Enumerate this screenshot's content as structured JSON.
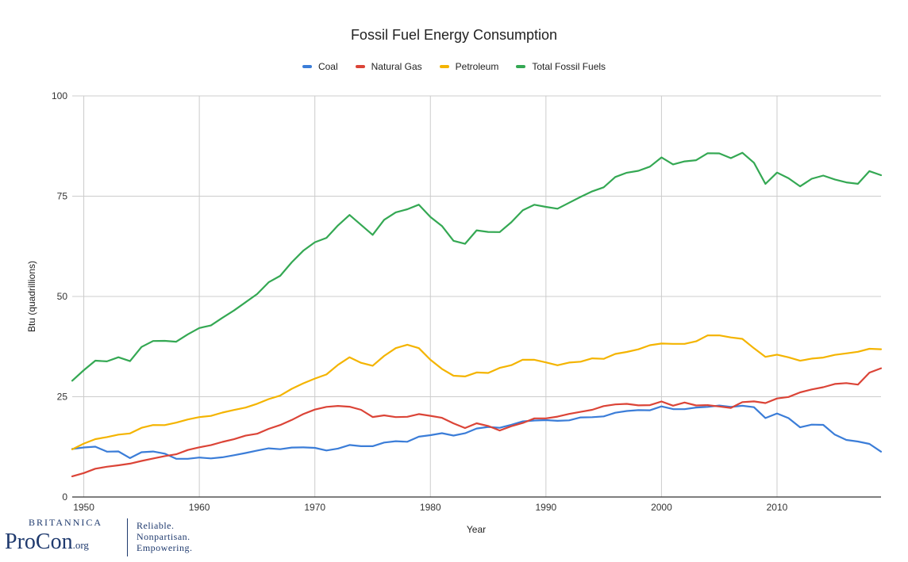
{
  "chart_data": {
    "type": "line",
    "title": "Fossil Fuel Energy Consumption",
    "xlabel": "Year",
    "ylabel": "Btu (quadrillions)",
    "xlim": [
      1949,
      2019
    ],
    "ylim": [
      0,
      100
    ],
    "x_ticks": [
      1950,
      1960,
      1970,
      1980,
      1990,
      2000,
      2010
    ],
    "y_ticks": [
      0,
      25,
      50,
      75,
      100
    ],
    "grid": true,
    "legend_position": "top",
    "x": [
      1949,
      1950,
      1951,
      1952,
      1953,
      1954,
      1955,
      1956,
      1957,
      1958,
      1959,
      1960,
      1961,
      1962,
      1963,
      1964,
      1965,
      1966,
      1967,
      1968,
      1969,
      1970,
      1971,
      1972,
      1973,
      1974,
      1975,
      1976,
      1977,
      1978,
      1979,
      1980,
      1981,
      1982,
      1983,
      1984,
      1985,
      1986,
      1987,
      1988,
      1989,
      1990,
      1991,
      1992,
      1993,
      1994,
      1995,
      1996,
      1997,
      1998,
      1999,
      2000,
      2001,
      2002,
      2003,
      2004,
      2005,
      2006,
      2007,
      2008,
      2009,
      2010,
      2011,
      2012,
      2013,
      2014,
      2015,
      2016,
      2017,
      2018,
      2019
    ],
    "series": [
      {
        "name": "Coal",
        "color": "#3b7dd8",
        "values": [
          11.98,
          12.35,
          12.55,
          11.31,
          11.37,
          9.7,
          11.17,
          11.35,
          10.82,
          9.53,
          9.52,
          9.84,
          9.62,
          9.91,
          10.41,
          10.96,
          11.58,
          12.14,
          11.91,
          12.33,
          12.38,
          12.26,
          11.6,
          12.08,
          12.97,
          12.66,
          12.66,
          13.58,
          13.92,
          13.77,
          15.04,
          15.42,
          15.91,
          15.32,
          15.89,
          17.07,
          17.48,
          17.26,
          18.01,
          18.85,
          19.07,
          19.17,
          18.99,
          19.12,
          19.84,
          19.91,
          20.09,
          21.0,
          21.45,
          21.66,
          21.62,
          22.58,
          21.91,
          21.9,
          22.32,
          22.47,
          22.8,
          22.45,
          22.75,
          22.39,
          19.69,
          20.83,
          19.66,
          17.38,
          18.04,
          17.99,
          15.55,
          14.23,
          13.84,
          13.25,
          11.3
        ]
      },
      {
        "name": "Natural Gas",
        "color": "#db4437",
        "values": [
          5.15,
          5.97,
          7.05,
          7.55,
          7.91,
          8.33,
          9.0,
          9.61,
          10.19,
          10.66,
          11.72,
          12.39,
          12.93,
          13.73,
          14.4,
          15.29,
          15.77,
          16.99,
          17.94,
          19.21,
          20.68,
          21.79,
          22.47,
          22.7,
          22.51,
          21.73,
          19.95,
          20.35,
          19.93,
          20.0,
          20.67,
          20.24,
          19.74,
          18.36,
          17.2,
          18.38,
          17.7,
          16.59,
          17.64,
          18.45,
          19.6,
          19.6,
          20.03,
          20.71,
          21.23,
          21.73,
          22.67,
          23.09,
          23.22,
          22.85,
          22.91,
          23.82,
          22.77,
          23.56,
          22.83,
          22.91,
          22.56,
          22.22,
          23.66,
          23.84,
          23.42,
          24.57,
          24.95,
          26.09,
          26.81,
          27.38,
          28.19,
          28.4,
          28.03,
          31.0,
          32.1
        ]
      },
      {
        "name": "Petroleum",
        "color": "#f4b400",
        "values": [
          11.88,
          13.32,
          14.43,
          14.95,
          15.56,
          15.84,
          17.25,
          17.94,
          17.93,
          18.53,
          19.32,
          19.92,
          20.22,
          21.05,
          21.7,
          22.3,
          23.25,
          24.4,
          25.28,
          26.98,
          28.34,
          29.52,
          30.56,
          32.95,
          34.84,
          33.45,
          32.73,
          35.17,
          37.12,
          37.97,
          37.12,
          34.2,
          31.93,
          30.23,
          30.05,
          31.05,
          30.92,
          32.2,
          32.87,
          34.22,
          34.21,
          33.55,
          32.85,
          33.52,
          33.74,
          34.56,
          34.44,
          35.68,
          36.16,
          36.82,
          37.84,
          38.26,
          38.19,
          38.19,
          38.81,
          40.29,
          40.3,
          39.78,
          39.42,
          37.09,
          34.94,
          35.49,
          34.82,
          33.98,
          34.5,
          34.76,
          35.43,
          35.81,
          36.2,
          36.96,
          36.84
        ]
      },
      {
        "name": "Total Fossil Fuels",
        "color": "#34a853",
        "values": [
          29.0,
          31.63,
          34.0,
          33.81,
          34.84,
          33.87,
          37.41,
          38.9,
          38.94,
          38.72,
          40.56,
          42.14,
          42.77,
          44.69,
          46.51,
          48.56,
          50.6,
          53.54,
          55.14,
          58.52,
          61.41,
          63.52,
          64.6,
          67.7,
          70.32,
          67.85,
          65.36,
          69.11,
          70.97,
          71.74,
          72.89,
          69.83,
          67.56,
          63.87,
          63.13,
          66.49,
          66.09,
          66.04,
          68.5,
          71.5,
          72.87,
          72.33,
          71.87,
          73.35,
          74.82,
          76.2,
          77.21,
          79.78,
          80.84,
          81.33,
          82.37,
          84.66,
          82.92,
          83.67,
          83.98,
          85.71,
          85.68,
          84.48,
          85.83,
          83.34,
          78.07,
          80.89,
          79.46,
          77.45,
          79.34,
          80.14,
          79.17,
          78.44,
          78.09,
          81.25,
          80.23
        ]
      }
    ]
  },
  "logo": {
    "brand_top": "BRITANNICA",
    "brand_main": "ProCon",
    "brand_suffix": ".org",
    "tagline_1": "Reliable.",
    "tagline_2": "Nonpartisan.",
    "tagline_3": "Empowering."
  }
}
